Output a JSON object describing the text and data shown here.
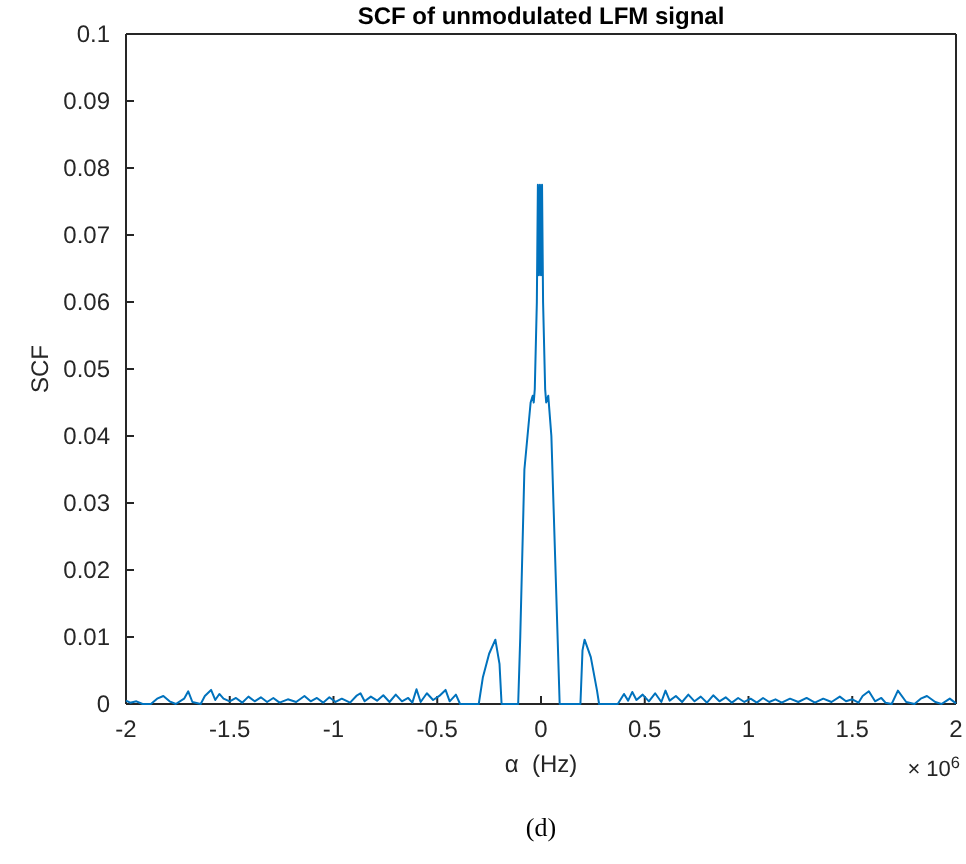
{
  "chart_data": {
    "type": "line",
    "title": "SCF of unmodulated LFM signal",
    "xlabel": "α  (Hz)",
    "ylabel": "SCF",
    "annotations": [
      "× 10$^{6}$",
      "(d)"
    ],
    "xlim": [
      -2,
      2
    ],
    "xticks": [
      -2,
      -1.5,
      -1,
      -0.5,
      0,
      0.5,
      1,
      1.5,
      2
    ],
    "ylim": [
      0,
      0.1
    ],
    "yticks": [
      0,
      0.01,
      0.02,
      0.03,
      0.04,
      0.05,
      0.06,
      0.07,
      0.08,
      0.09,
      0.1
    ],
    "grid": false,
    "marker": "none",
    "line_style": "solid",
    "series": [
      {
        "color": "#0072bd",
        "x": [
          -2,
          -1.98,
          -1.95,
          -1.92,
          -1.88,
          -1.85,
          -1.82,
          -1.79,
          -1.76,
          -1.72,
          -1.7,
          -1.68,
          -1.64,
          -1.62,
          -1.59,
          -1.57,
          -1.55,
          -1.53,
          -1.5,
          -1.47,
          -1.44,
          -1.41,
          -1.38,
          -1.35,
          -1.32,
          -1.29,
          -1.26,
          -1.22,
          -1.18,
          -1.14,
          -1.11,
          -1.08,
          -1.05,
          -1.02,
          -0.99,
          -0.96,
          -0.92,
          -0.89,
          -0.87,
          -0.85,
          -0.82,
          -0.79,
          -0.76,
          -0.73,
          -0.7,
          -0.67,
          -0.64,
          -0.62,
          -0.6,
          -0.58,
          -0.55,
          -0.52,
          -0.49,
          -0.46,
          -0.44,
          -0.41,
          -0.39,
          -0.3,
          -0.28,
          -0.25,
          -0.22,
          -0.2,
          -0.19,
          -0.11,
          -0.1,
          -0.08,
          -0.05,
          -0.04,
          -0.035,
          -0.03,
          -0.02,
          -0.015,
          -0.01,
          -0.005,
          0,
          0.005,
          0.01,
          0.02,
          0.025,
          0.035,
          0.05,
          0.07,
          0.09,
          0.19,
          0.2,
          0.21,
          0.24,
          0.27,
          0.28,
          0.37,
          0.4,
          0.42,
          0.44,
          0.46,
          0.49,
          0.52,
          0.55,
          0.58,
          0.6,
          0.62,
          0.65,
          0.68,
          0.71,
          0.74,
          0.77,
          0.8,
          0.83,
          0.86,
          0.89,
          0.92,
          0.95,
          0.98,
          1.01,
          1.04,
          1.07,
          1.1,
          1.13,
          1.16,
          1.2,
          1.24,
          1.28,
          1.32,
          1.36,
          1.4,
          1.44,
          1.47,
          1.5,
          1.53,
          1.55,
          1.58,
          1.61,
          1.64,
          1.66,
          1.69,
          1.72,
          1.76,
          1.8,
          1.83,
          1.86,
          1.9,
          1.93,
          1.95,
          1.97,
          2
        ],
        "values": [
          0.0005,
          0.0002,
          0.0004,
          0,
          0,
          0.0008,
          0.0012,
          0.0004,
          0,
          0.0008,
          0.0019,
          0.0003,
          0,
          0.0012,
          0.0021,
          0.0006,
          0.0015,
          0.0008,
          0.0004,
          0.0009,
          0.0002,
          0.0011,
          0.0004,
          0.001,
          0.0003,
          0.0009,
          0.0002,
          0.0007,
          0.0003,
          0.0012,
          0.0004,
          0.0009,
          0.0002,
          0.001,
          0.0003,
          0.0008,
          0.0002,
          0.0012,
          0.0016,
          0.0004,
          0.0011,
          0.0005,
          0.0013,
          0.0003,
          0.0014,
          0.0004,
          0.0009,
          0.0002,
          0.0022,
          0.0003,
          0.0016,
          0.0006,
          0.0012,
          0.0021,
          0.0004,
          0.0014,
          0,
          0,
          0.004,
          0.0075,
          0.0096,
          0.006,
          0,
          0,
          0.01,
          0.035,
          0.045,
          0.046,
          0.045,
          0.047,
          0.06,
          0.0775,
          0.064,
          0.0775,
          0.064,
          0.0775,
          0.06,
          0.047,
          0.045,
          0.046,
          0.04,
          0.02,
          0,
          0,
          0.008,
          0.0096,
          0.007,
          0.002,
          0,
          0,
          0.0015,
          0.0005,
          0.0018,
          0.0006,
          0.0014,
          0.0004,
          0.0016,
          0.0003,
          0.002,
          0.0005,
          0.0012,
          0.0003,
          0.0014,
          0.0004,
          0.0011,
          0.0002,
          0.0013,
          0.0004,
          0.001,
          0.0002,
          0.0009,
          0.0003,
          0.0008,
          0.0002,
          0.0009,
          0.0003,
          0.0007,
          0.0002,
          0.0008,
          0.0003,
          0.0009,
          0.0002,
          0.0008,
          0.0003,
          0.0011,
          0.0004,
          0.0007,
          0.0002,
          0.0012,
          0.0019,
          0.0004,
          0.0009,
          0.0002,
          0,
          0.002,
          0.0003,
          0,
          0.0008,
          0.0012,
          0.0003,
          0,
          0.0004,
          0.0008,
          0.0001
        ]
      }
    ]
  }
}
